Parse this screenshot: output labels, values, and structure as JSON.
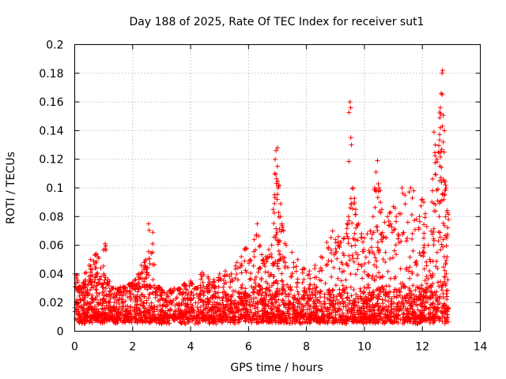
{
  "chart_data": {
    "type": "scatter",
    "title": "Day 188 of 2025, Rate Of TEC Index for receiver sut1",
    "xlabel": "GPS time / hours",
    "ylabel": "ROTI / TECUs",
    "xlim": [
      0,
      14
    ],
    "ylim": [
      0,
      0.2
    ],
    "x_ticks": [
      "0",
      "2",
      "4",
      "6",
      "8",
      "10",
      "12",
      "14"
    ],
    "y_ticks": [
      "0",
      "0.02",
      "0.04",
      "0.06",
      "0.08",
      "0.1",
      "0.12",
      "0.14",
      "0.16",
      "0.18",
      "0.2"
    ],
    "x_tick_values": [
      0,
      2,
      4,
      6,
      8,
      10,
      12,
      14
    ],
    "y_tick_values": [
      0,
      0.02,
      0.04,
      0.06,
      0.08,
      0.1,
      0.12,
      0.14,
      0.16,
      0.18,
      0.2
    ],
    "grid": true,
    "marker": "+",
    "series_color": "#ff0000",
    "data_range_x": [
      0,
      12.9
    ],
    "baseline_band": [
      0.005,
      0.03
    ],
    "series": [
      {
        "name": "ROTI",
        "points": [
          [
            0.0,
            0.04
          ],
          [
            0.05,
            0.039
          ],
          [
            0.1,
            0.028
          ],
          [
            0.15,
            0.031
          ],
          [
            0.3,
            0.034
          ],
          [
            0.4,
            0.041
          ],
          [
            0.5,
            0.046
          ],
          [
            0.55,
            0.05
          ],
          [
            0.65,
            0.049
          ],
          [
            0.7,
            0.053
          ],
          [
            0.75,
            0.054
          ],
          [
            0.8,
            0.052
          ],
          [
            0.9,
            0.044
          ],
          [
            1.0,
            0.04
          ],
          [
            1.05,
            0.061
          ],
          [
            1.15,
            0.036
          ],
          [
            1.3,
            0.03
          ],
          [
            1.5,
            0.029
          ],
          [
            1.7,
            0.031
          ],
          [
            1.9,
            0.033
          ],
          [
            2.0,
            0.034
          ],
          [
            2.1,
            0.036
          ],
          [
            2.2,
            0.04
          ],
          [
            2.3,
            0.046
          ],
          [
            2.4,
            0.048
          ],
          [
            2.45,
            0.05
          ],
          [
            2.5,
            0.044
          ],
          [
            2.55,
            0.075
          ],
          [
            2.7,
            0.069
          ],
          [
            2.6,
            0.032
          ],
          [
            2.9,
            0.031
          ],
          [
            3.0,
            0.025
          ],
          [
            3.3,
            0.027
          ],
          [
            3.6,
            0.029
          ],
          [
            3.8,
            0.033
          ],
          [
            4.0,
            0.035
          ],
          [
            4.2,
            0.03
          ],
          [
            4.4,
            0.041
          ],
          [
            4.6,
            0.038
          ],
          [
            4.8,
            0.036
          ],
          [
            5.0,
            0.04
          ],
          [
            5.2,
            0.042
          ],
          [
            5.4,
            0.04
          ],
          [
            5.6,
            0.048
          ],
          [
            5.75,
            0.052
          ],
          [
            5.9,
            0.058
          ],
          [
            6.05,
            0.05
          ],
          [
            6.2,
            0.064
          ],
          [
            6.3,
            0.075
          ],
          [
            6.4,
            0.06
          ],
          [
            6.5,
            0.05
          ],
          [
            6.6,
            0.052
          ],
          [
            6.7,
            0.057
          ],
          [
            6.8,
            0.06
          ],
          [
            6.85,
            0.085
          ],
          [
            6.9,
            0.11
          ],
          [
            6.92,
            0.12
          ],
          [
            6.95,
            0.126
          ],
          [
            7.0,
            0.128
          ],
          [
            7.02,
            0.1
          ],
          [
            7.05,
            0.102
          ],
          [
            7.1,
            0.08
          ],
          [
            7.15,
            0.075
          ],
          [
            7.2,
            0.07
          ],
          [
            7.3,
            0.06
          ],
          [
            7.5,
            0.055
          ],
          [
            7.7,
            0.05
          ],
          [
            7.9,
            0.044
          ],
          [
            8.1,
            0.042
          ],
          [
            8.3,
            0.046
          ],
          [
            8.5,
            0.052
          ],
          [
            8.7,
            0.062
          ],
          [
            8.9,
            0.07
          ],
          [
            9.0,
            0.064
          ],
          [
            9.1,
            0.066
          ],
          [
            9.2,
            0.062
          ],
          [
            9.3,
            0.065
          ],
          [
            9.4,
            0.075
          ],
          [
            9.45,
            0.08
          ],
          [
            9.5,
            0.16
          ],
          [
            9.55,
            0.13
          ],
          [
            9.6,
            0.1
          ],
          [
            9.65,
            0.09
          ],
          [
            9.7,
            0.085
          ],
          [
            9.8,
            0.075
          ],
          [
            9.9,
            0.068
          ],
          [
            10.0,
            0.065
          ],
          [
            10.1,
            0.068
          ],
          [
            10.2,
            0.07
          ],
          [
            10.3,
            0.08
          ],
          [
            10.35,
            0.1
          ],
          [
            10.4,
            0.111
          ],
          [
            10.45,
            0.119
          ],
          [
            10.5,
            0.1
          ],
          [
            10.55,
            0.09
          ],
          [
            10.6,
            0.085
          ],
          [
            10.7,
            0.076
          ],
          [
            10.8,
            0.08
          ],
          [
            10.9,
            0.083
          ],
          [
            11.0,
            0.087
          ],
          [
            11.1,
            0.08
          ],
          [
            11.2,
            0.082
          ],
          [
            11.3,
            0.1
          ],
          [
            11.4,
            0.095
          ],
          [
            11.5,
            0.076
          ],
          [
            11.6,
            0.1
          ],
          [
            11.7,
            0.098
          ],
          [
            11.8,
            0.078
          ],
          [
            11.9,
            0.08
          ],
          [
            12.0,
            0.092
          ],
          [
            12.05,
            0.09
          ],
          [
            12.1,
            0.082
          ],
          [
            12.2,
            0.06
          ],
          [
            12.3,
            0.07
          ],
          [
            12.35,
            0.098
          ],
          [
            12.4,
            0.139
          ],
          [
            12.45,
            0.13
          ],
          [
            12.5,
            0.12
          ],
          [
            12.55,
            0.125
          ],
          [
            12.6,
            0.149
          ],
          [
            12.62,
            0.156
          ],
          [
            12.65,
            0.166
          ],
          [
            12.68,
            0.18
          ],
          [
            12.7,
            0.182
          ],
          [
            12.72,
            0.132
          ],
          [
            12.75,
            0.125
          ],
          [
            12.78,
            0.105
          ],
          [
            12.8,
            0.102
          ],
          [
            12.82,
            0.1
          ],
          [
            12.85,
            0.083
          ],
          [
            12.9,
            0.078
          ]
        ]
      }
    ]
  }
}
